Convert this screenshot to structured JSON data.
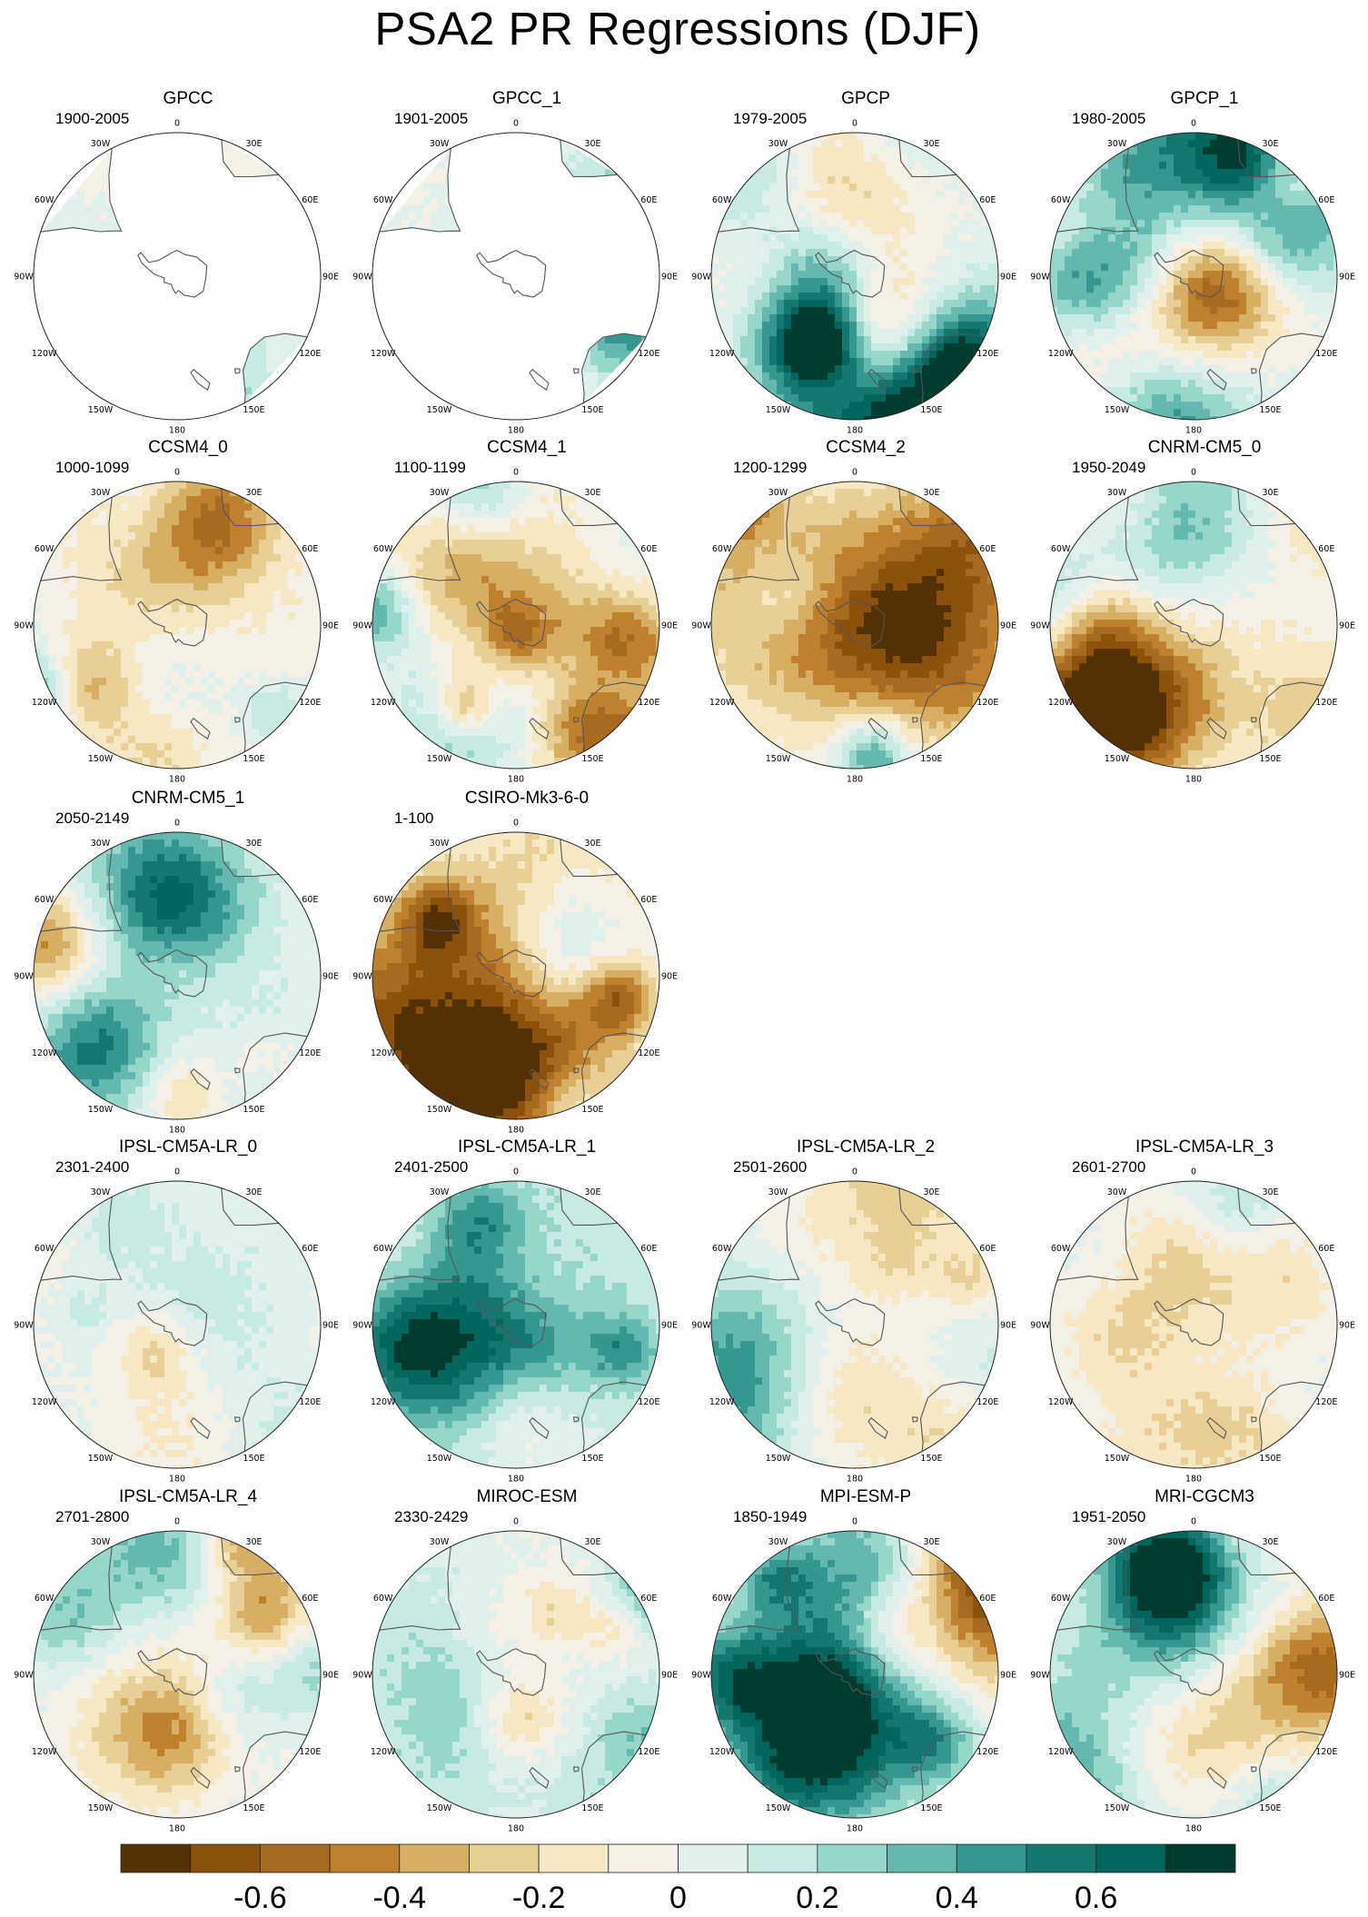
{
  "title": "PSA2 PR Regressions (DJF)",
  "longitude_labels": [
    "0",
    "30E",
    "60E",
    "90E",
    "120E",
    "150E",
    "180",
    "150W",
    "120W",
    "90W",
    "60W",
    "30W"
  ],
  "panels": [
    {
      "name": "GPCC",
      "years": "1900-2005",
      "coverage": "land",
      "amp": 0.3,
      "seed": 11
    },
    {
      "name": "GPCC_1",
      "years": "1901-2005",
      "coverage": "land",
      "amp": 0.35,
      "seed": 23
    },
    {
      "name": "GPCP",
      "years": "1979-2005",
      "coverage": "full",
      "amp": 0.6,
      "seed": 37
    },
    {
      "name": "GPCP_1",
      "years": "1980-2005",
      "coverage": "full",
      "amp": 0.65,
      "seed": 41
    },
    {
      "name": "CCSM4_0",
      "years": "1000-1099",
      "coverage": "full",
      "amp": 0.45,
      "seed": 53
    },
    {
      "name": "CCSM4_1",
      "years": "1100-1199",
      "coverage": "full",
      "amp": 0.5,
      "seed": 67
    },
    {
      "name": "CCSM4_2",
      "years": "1200-1299",
      "coverage": "full",
      "amp": 0.5,
      "seed": 71
    },
    {
      "name": "CNRM-CM5_0",
      "years": "1950-2049",
      "coverage": "full",
      "amp": 0.5,
      "seed": 83
    },
    {
      "name": "CNRM-CM5_1",
      "years": "2050-2149",
      "coverage": "full",
      "amp": 0.5,
      "seed": 97
    },
    {
      "name": "CSIRO-Mk3-6-0",
      "years": "1-100",
      "coverage": "full",
      "amp": 0.65,
      "seed": 101
    },
    {
      "name": "IPSL-CM5A-LR_0",
      "years": "2301-2400",
      "coverage": "full",
      "amp": 0.3,
      "seed": 113
    },
    {
      "name": "IPSL-CM5A-LR_1",
      "years": "2401-2500",
      "coverage": "full",
      "amp": 0.35,
      "seed": 127
    },
    {
      "name": "IPSL-CM5A-LR_2",
      "years": "2501-2600",
      "coverage": "full",
      "amp": 0.3,
      "seed": 131
    },
    {
      "name": "IPSL-CM5A-LR_3",
      "years": "2601-2700",
      "coverage": "full",
      "amp": 0.3,
      "seed": 139
    },
    {
      "name": "IPSL-CM5A-LR_4",
      "years": "2701-2800",
      "coverage": "full",
      "amp": 0.3,
      "seed": 149
    },
    {
      "name": "MIROC-ESM",
      "years": "2330-2429",
      "coverage": "full",
      "amp": 0.4,
      "seed": 151
    },
    {
      "name": "MPI-ESM-P",
      "years": "1850-1949",
      "coverage": "full",
      "amp": 0.5,
      "seed": 163
    },
    {
      "name": "MRI-CGCM3",
      "years": "1951-2050",
      "coverage": "full",
      "amp": 0.55,
      "seed": 173
    }
  ],
  "colorbar": {
    "colors": [
      "#543005",
      "#8c510a",
      "#a86920",
      "#bf812d",
      "#d6ae64",
      "#e8cf95",
      "#f6e8c3",
      "#f5f1e6",
      "#e0f0ec",
      "#c7eae5",
      "#96d6cb",
      "#64b9ae",
      "#35978f",
      "#16776e",
      "#01665e",
      "#003c30"
    ],
    "tick_labels": [
      "-0.6",
      "-0.4",
      "-0.2",
      "0",
      "0.2",
      "0.4",
      "0.6"
    ],
    "tick_values": [
      -0.6,
      -0.4,
      -0.2,
      0,
      0.2,
      0.4,
      0.6
    ],
    "levels": [
      -0.7,
      -0.6,
      -0.5,
      -0.4,
      -0.3,
      -0.2,
      -0.1,
      0,
      0.1,
      0.2,
      0.3,
      0.4,
      0.5,
      0.6,
      0.7
    ]
  }
}
